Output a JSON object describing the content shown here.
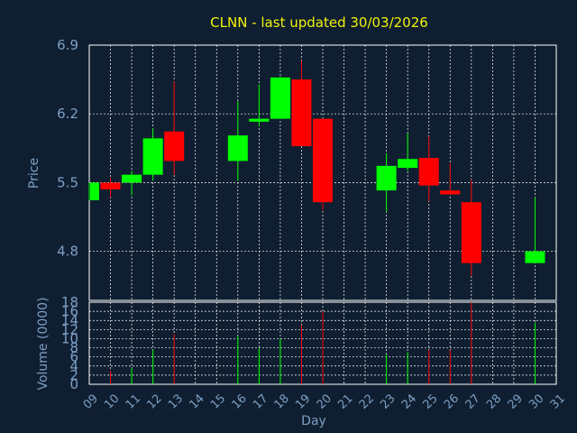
{
  "chart_data": {
    "type": "candlestick",
    "title": "CLNN - last updated 30/03/2026",
    "xlabel": "Day",
    "colors": {
      "up": "#00ff00",
      "down": "#ff0000",
      "grid": "#ffffff",
      "axis_text": "#7d9fc4",
      "title": "#f2f20a",
      "background": "#0f1f31"
    },
    "price_panel": {
      "ylabel": "Price",
      "ylim": [
        4.3,
        6.9
      ],
      "yticks": [
        "6.9",
        "6.2",
        "5.5",
        "4.8"
      ]
    },
    "volume_panel": {
      "ylabel": "Volume (0000)",
      "ylim": [
        0,
        18
      ],
      "yticks": [
        "18",
        "16",
        "14",
        "12",
        "10",
        "8",
        "6",
        "4",
        "2",
        "0"
      ]
    },
    "x_categories": [
      "09",
      "10",
      "11",
      "12",
      "13",
      "14",
      "15",
      "16",
      "17",
      "18",
      "19",
      "20",
      "21",
      "22",
      "23",
      "24",
      "25",
      "26",
      "27",
      "28",
      "29",
      "30",
      "31"
    ],
    "candles": [
      {
        "day": "09",
        "open": 5.32,
        "high": 5.5,
        "low": 5.32,
        "close": 5.5,
        "volume": 0
      },
      {
        "day": "10",
        "open": 5.5,
        "high": 5.55,
        "low": 5.35,
        "close": 5.43,
        "volume": 3
      },
      {
        "day": "11",
        "open": 5.5,
        "high": 5.62,
        "low": 5.37,
        "close": 5.58,
        "volume": 3.5
      },
      {
        "day": "12",
        "open": 5.58,
        "high": 6.05,
        "low": 5.52,
        "close": 5.95,
        "volume": 7.5
      },
      {
        "day": "13",
        "open": 6.02,
        "high": 6.53,
        "low": 5.58,
        "close": 5.72,
        "volume": 11
      },
      {
        "day": "16",
        "open": 5.72,
        "high": 6.33,
        "low": 5.52,
        "close": 5.98,
        "volume": 10.5
      },
      {
        "day": "17",
        "open": 6.12,
        "high": 6.5,
        "low": 6.07,
        "close": 6.15,
        "volume": 8
      },
      {
        "day": "18",
        "open": 6.15,
        "high": 6.58,
        "low": 6.15,
        "close": 6.57,
        "volume": 10
      },
      {
        "day": "19",
        "open": 6.55,
        "high": 6.74,
        "low": 5.87,
        "close": 5.87,
        "volume": 13
      },
      {
        "day": "20",
        "open": 6.15,
        "high": 6.15,
        "low": 5.22,
        "close": 5.3,
        "volume": 16
      },
      {
        "day": "23",
        "open": 5.42,
        "high": 5.8,
        "low": 5.2,
        "close": 5.67,
        "volume": 6.5
      },
      {
        "day": "24",
        "open": 5.65,
        "high": 6.0,
        "low": 5.62,
        "close": 5.74,
        "volume": 7
      },
      {
        "day": "25",
        "open": 5.75,
        "high": 5.97,
        "low": 5.31,
        "close": 5.47,
        "volume": 7.5
      },
      {
        "day": "26",
        "open": 5.42,
        "high": 5.7,
        "low": 5.37,
        "close": 5.38,
        "volume": 7.5
      },
      {
        "day": "27",
        "open": 5.3,
        "high": 5.53,
        "low": 4.55,
        "close": 4.68,
        "volume": 18
      },
      {
        "day": "30",
        "open": 4.68,
        "high": 5.35,
        "low": 4.68,
        "close": 4.8,
        "volume": 13.5
      }
    ]
  }
}
